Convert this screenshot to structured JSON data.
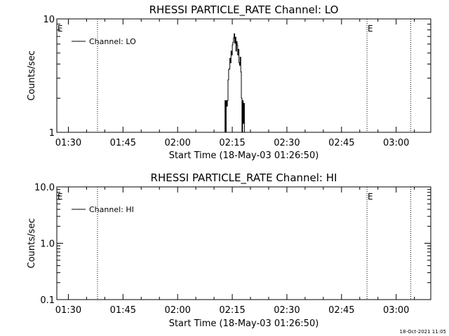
{
  "chart_data": [
    {
      "type": "line",
      "title": "RHESSI PARTICLE_RATE Channel: LO",
      "xlabel": "Start Time (18-May-03 01:26:50)",
      "ylabel": "Counts/sec",
      "yscale": "log",
      "ylim": [
        1,
        10
      ],
      "y_tick_labels": [
        "1",
        "10"
      ],
      "xlim": [
        "01:26:50",
        "03:09:30"
      ],
      "x_tick_labels": [
        "01:30",
        "01:45",
        "02:00",
        "02:15",
        "02:30",
        "02:45",
        "03:00"
      ],
      "legend": {
        "position": "top-left",
        "entries": [
          "Channel: LO"
        ]
      },
      "grid": false,
      "vertical_markers": [
        "01:38:00",
        "02:52:00",
        "03:04:00"
      ],
      "flags": [
        {
          "label": "E",
          "x": "01:27:00"
        },
        {
          "label": "E",
          "x": "02:52:10"
        }
      ],
      "series": [
        {
          "name": "Channel: LO",
          "points": [
            {
              "x": "02:12:30",
              "y": 1.0
            },
            {
              "x": "02:13:00",
              "y": 1.0
            },
            {
              "x": "02:13:10",
              "y": 1.9
            },
            {
              "x": "02:13:20",
              "y": 1.0
            },
            {
              "x": "02:13:30",
              "y": 1.9
            },
            {
              "x": "02:13:40",
              "y": 1.7
            },
            {
              "x": "02:13:50",
              "y": 1.9
            },
            {
              "x": "02:14:00",
              "y": 2.9
            },
            {
              "x": "02:14:10",
              "y": 3.6
            },
            {
              "x": "02:14:20",
              "y": 3.6
            },
            {
              "x": "02:14:30",
              "y": 4.5
            },
            {
              "x": "02:14:40",
              "y": 4.1
            },
            {
              "x": "02:14:50",
              "y": 5.2
            },
            {
              "x": "02:15:00",
              "y": 4.8
            },
            {
              "x": "02:15:10",
              "y": 5.9
            },
            {
              "x": "02:15:20",
              "y": 6.2
            },
            {
              "x": "02:15:30",
              "y": 6.8
            },
            {
              "x": "02:15:40",
              "y": 7.4
            },
            {
              "x": "02:15:50",
              "y": 6.1
            },
            {
              "x": "02:16:00",
              "y": 6.9
            },
            {
              "x": "02:16:10",
              "y": 5.2
            },
            {
              "x": "02:16:20",
              "y": 6.3
            },
            {
              "x": "02:16:30",
              "y": 5.9
            },
            {
              "x": "02:16:40",
              "y": 4.8
            },
            {
              "x": "02:16:50",
              "y": 5.4
            },
            {
              "x": "02:17:00",
              "y": 4.1
            },
            {
              "x": "02:17:10",
              "y": 3.9
            },
            {
              "x": "02:17:20",
              "y": 4.6
            },
            {
              "x": "02:17:30",
              "y": 3.4
            },
            {
              "x": "02:17:40",
              "y": 2.0
            },
            {
              "x": "02:17:50",
              "y": 1.0
            },
            {
              "x": "02:18:00",
              "y": 1.9
            },
            {
              "x": "02:18:10",
              "y": 1.2
            },
            {
              "x": "02:18:20",
              "y": 1.8
            },
            {
              "x": "02:18:30",
              "y": 1.0
            }
          ]
        }
      ]
    },
    {
      "type": "line",
      "title": "RHESSI PARTICLE_RATE Channel: HI",
      "xlabel": "Start Time (18-May-03 01:26:50)",
      "ylabel": "Counts/sec",
      "yscale": "log",
      "ylim": [
        0.1,
        10
      ],
      "y_tick_labels": [
        "0.1",
        "1.0",
        "10.0"
      ],
      "xlim": [
        "01:26:50",
        "03:09:30"
      ],
      "x_tick_labels": [
        "01:30",
        "01:45",
        "02:00",
        "02:15",
        "02:30",
        "02:45",
        "03:00"
      ],
      "legend": {
        "position": "top-left",
        "entries": [
          "Channel: HI"
        ]
      },
      "grid": false,
      "vertical_markers": [
        "01:38:00",
        "02:52:00",
        "03:04:00"
      ],
      "flags": [
        {
          "label": "E",
          "x": "01:27:00"
        },
        {
          "label": "E",
          "x": "02:52:10"
        }
      ],
      "series": [
        {
          "name": "Channel: HI",
          "points": []
        }
      ]
    }
  ],
  "footer": {
    "timestamp": "18-Oct-2021 11:05"
  }
}
